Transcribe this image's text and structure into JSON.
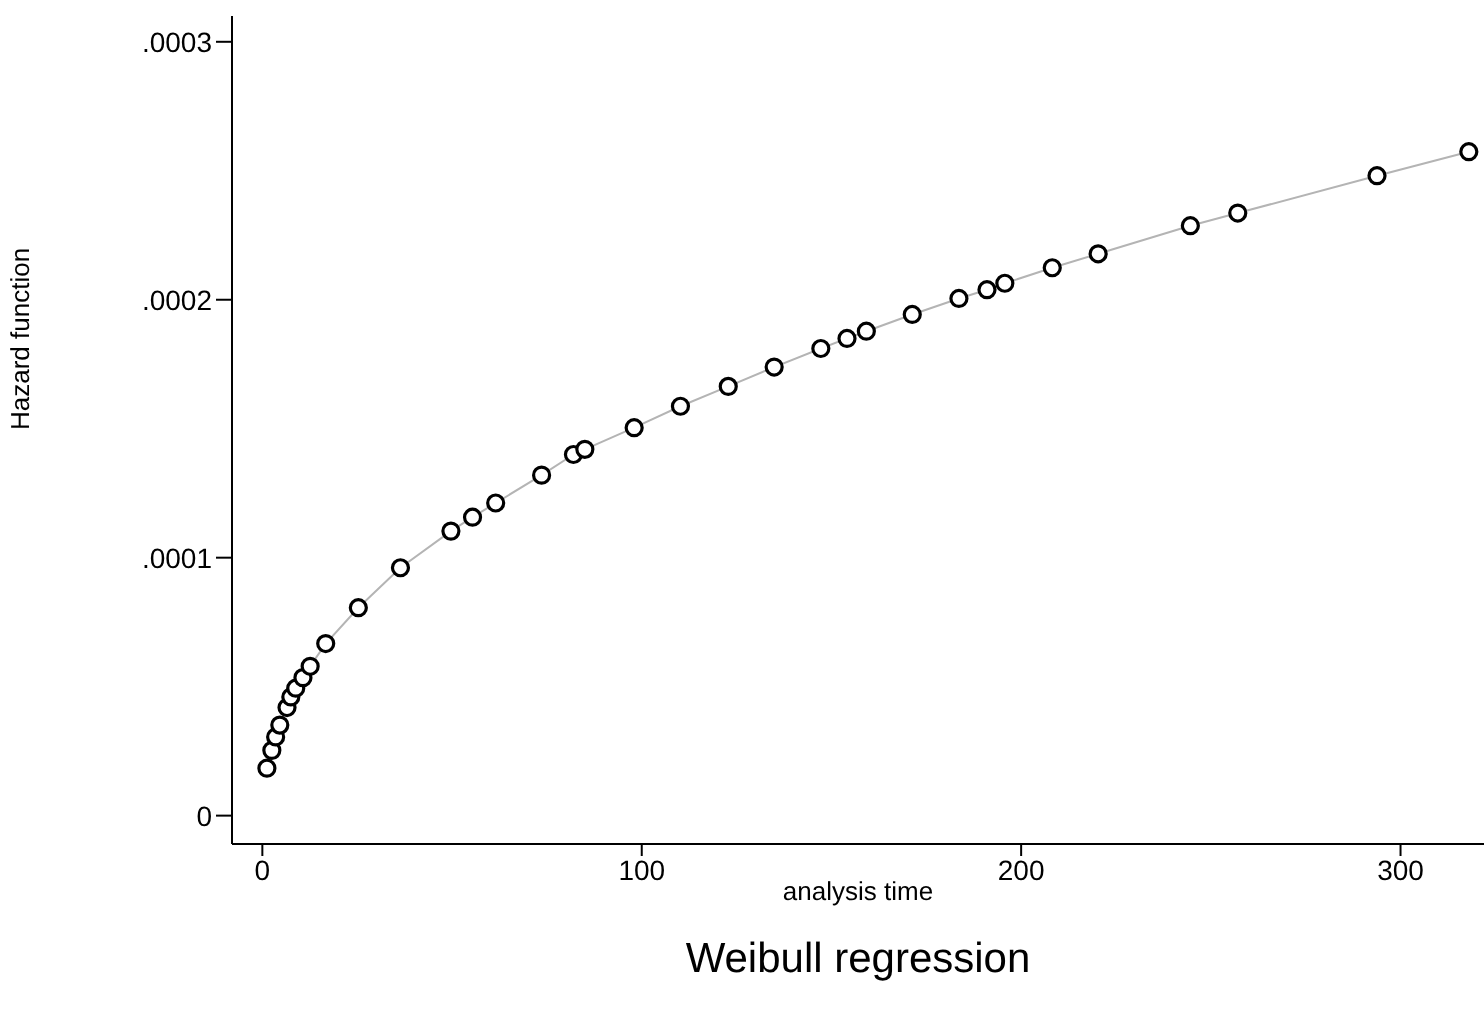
{
  "chart_data": {
    "type": "scatter",
    "title": "Weibull regression",
    "xlabel": "analysis time",
    "ylabel": "Hazard function",
    "xlim": [
      -8,
      322
    ],
    "xticks": [
      0,
      100,
      200,
      300
    ],
    "ylim": [
      -1.1e-05,
      0.00031
    ],
    "yticks": [
      0,
      {
        "value": 0.0001,
        "label": ".0001"
      },
      {
        "value": 0.0002,
        "label": ".0002"
      },
      {
        "value": 0.0003,
        "label": ".0003"
      }
    ],
    "grid": false,
    "x": [
      1.2,
      2.5,
      3.5,
      4.6,
      6.5,
      7.5,
      8.8,
      10.7,
      12.6,
      16.7,
      25.3,
      36.4,
      49.7,
      55.4,
      61.5,
      73.6,
      82,
      85,
      98,
      110.2,
      122.8,
      134.9,
      147.2,
      154.1,
      159.2,
      171.3,
      183.6,
      191,
      195.7,
      208.2,
      220.3,
      244.6,
      257.1,
      293.8,
      318
    ],
    "series": [
      {
        "type": "line",
        "color": "#b4b4b4",
        "marker": "none",
        "values": [
          1.84e-05,
          2.53e-05,
          3.05e-05,
          3.51e-05,
          4.19e-05,
          4.6e-05,
          4.94e-05,
          5.35e-05,
          5.79e-05,
          6.67e-05,
          8.06e-05,
          9.61e-05,
          0.0001103,
          0.0001157,
          0.0001212,
          0.000132,
          0.00014,
          0.000142,
          0.0001504,
          0.0001587,
          0.0001664,
          0.0001739,
          0.0001811,
          0.000185,
          0.0001878,
          0.0001943,
          0.0002005,
          0.0002039,
          0.0002064,
          0.0002124,
          0.0002178,
          0.0002287,
          0.0002336,
          0.0002481,
          0.0002574
        ]
      },
      {
        "color": "#000000",
        "marker": "circle",
        "values": [
          1.84e-05,
          2.53e-05,
          3.05e-05,
          3.51e-05,
          4.19e-05,
          4.6e-05,
          4.94e-05,
          5.35e-05,
          5.79e-05,
          6.67e-05,
          8.06e-05,
          9.61e-05,
          0.0001103,
          0.0001157,
          0.0001212,
          0.000132,
          0.00014,
          0.000142,
          0.0001504,
          0.0001587,
          0.0001664,
          0.0001739,
          0.0001811,
          0.000185,
          0.0001878,
          0.0001943,
          0.0002005,
          0.0002039,
          0.0002064,
          0.0002124,
          0.0002178,
          0.0002287,
          0.0002336,
          0.0002481,
          0.0002574
        ]
      }
    ]
  }
}
